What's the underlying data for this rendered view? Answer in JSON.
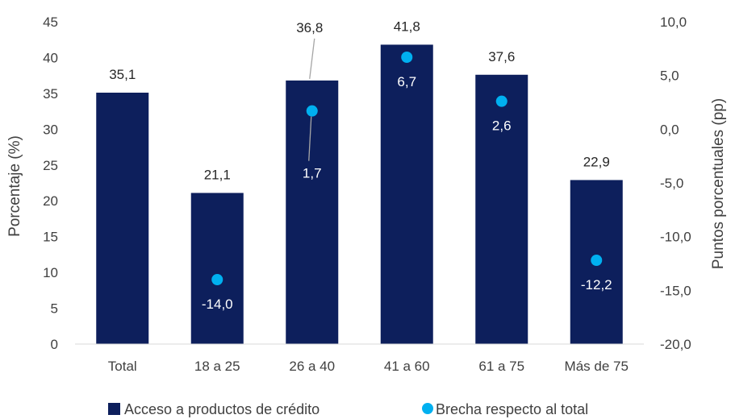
{
  "chart_data": {
    "type": "bar",
    "categories": [
      "Total",
      "18 a 25",
      "26 a 40",
      "41 a 60",
      "61 a 75",
      "Más de 75"
    ],
    "series": [
      {
        "name": "Acceso a productos de crédito",
        "kind": "bar",
        "axis": "left",
        "color": "#0D1F5C",
        "values": [
          35.1,
          21.1,
          36.8,
          41.8,
          37.6,
          22.9
        ],
        "labels": [
          "35,1",
          "21,1",
          "36,8",
          "41,8",
          "37,6",
          "22,9"
        ]
      },
      {
        "name": "Brecha respecto al total",
        "kind": "scatter",
        "axis": "right",
        "color": "#00B0F0",
        "values": [
          null,
          -14.0,
          1.7,
          6.7,
          2.6,
          -12.2
        ],
        "labels": [
          "",
          "-14,0",
          "1,7",
          "6,7",
          "2,6",
          "-12,2"
        ]
      }
    ],
    "y_left": {
      "label": "Porcentaje (%)",
      "range": [
        0,
        45
      ],
      "ticks": [
        "0",
        "5",
        "10",
        "15",
        "20",
        "25",
        "30",
        "35",
        "40",
        "45"
      ]
    },
    "y_right": {
      "label": "Puntos porcentuales (pp)",
      "range": [
        -20,
        10
      ],
      "ticks": [
        "-20,0",
        "-15,0",
        "-10,0",
        "-5,0",
        "0,0",
        "5,0",
        "10,0"
      ]
    },
    "grid": false,
    "legend_position": "bottom"
  }
}
